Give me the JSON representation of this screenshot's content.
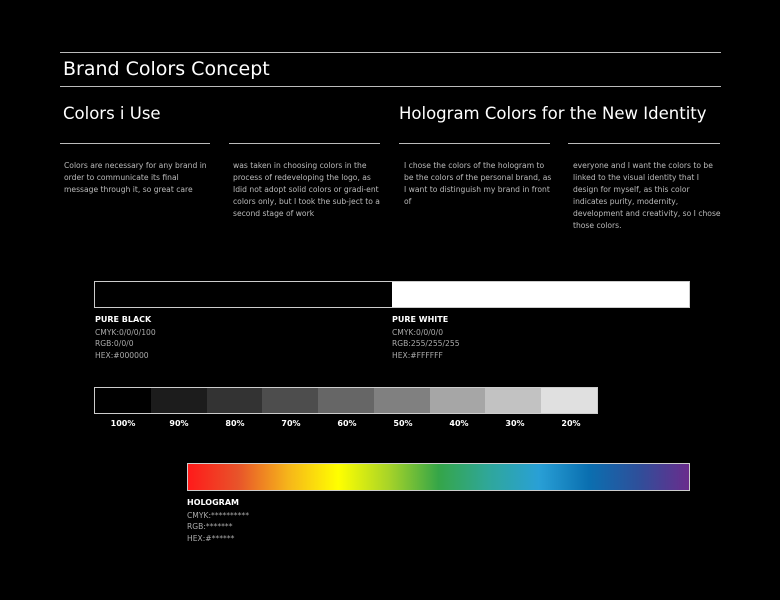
{
  "title": "Brand Colors Concept",
  "sections": [
    {
      "heading": "Colors i Use",
      "paragraphs": [
        "Colors are necessary for any brand in order to communicate its final message through it, so great care",
        "was taken in choosing colors in the process of redeveloping the logo, as Idid not adopt solid colors or gradi-ent colors only, but I took the sub-ject to a second stage of work"
      ]
    },
    {
      "heading": "Hologram Colors for the New Identity",
      "paragraphs": [
        "I chose the colors of the hologram to be the colors of the personal brand, as I want to distinguish my brand in front of",
        "everyone and I want the colors to be linked to the visual identity that I design for myself, as this color indicates purity, modernity, development and creativity, so I chose those colors."
      ]
    }
  ],
  "swatches": [
    {
      "name": "PURE BLACK",
      "color": "#000000",
      "cmyk": "CMYK:0/0/0/100",
      "rgb": "RGB:0/0/0",
      "hex": "HEX:#000000"
    },
    {
      "name": "PURE WHITE",
      "color": "#FFFFFF",
      "cmyk": "CMYK:0/0/0/0",
      "rgb": "RGB:255/255/255",
      "hex": "HEX:#FFFFFF"
    }
  ],
  "tints": [
    {
      "label": "100%",
      "color": "#000000"
    },
    {
      "label": "90%",
      "color": "#1c1c1c"
    },
    {
      "label": "80%",
      "color": "#333333"
    },
    {
      "label": "70%",
      "color": "#4d4d4d"
    },
    {
      "label": "60%",
      "color": "#666666"
    },
    {
      "label": "50%",
      "color": "#808080"
    },
    {
      "label": "40%",
      "color": "#a6a6a6"
    },
    {
      "label": "30%",
      "color": "#c2c2c2"
    },
    {
      "label": "20%",
      "color": "#e0e0e0"
    }
  ],
  "hologram": {
    "name": "HOLOGRAM",
    "cmyk": "CMYK:**********",
    "rgb": "RGB:*******",
    "hex": "HEX:#******",
    "gradient": [
      "#ff1a1a",
      "#e8542a",
      "#f6b51a",
      "#ffff00",
      "#a8d428",
      "#35a548",
      "#2fa79a",
      "#29a0d6",
      "#0a6fb0",
      "#2f4f9a",
      "#6a2c8c"
    ]
  }
}
